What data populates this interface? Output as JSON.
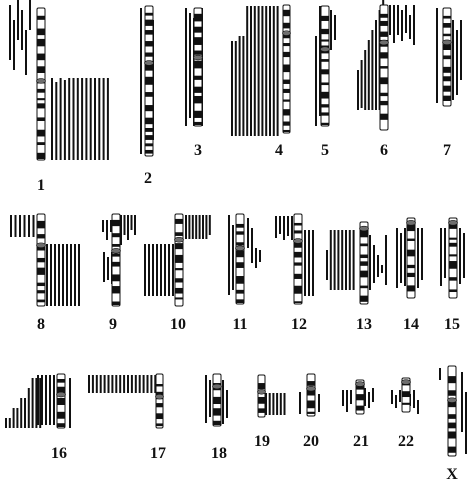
{
  "figure": {
    "labels": [
      "1",
      "2",
      "3",
      "4",
      "5",
      "6",
      "7",
      "8",
      "9",
      "10",
      "11",
      "12",
      "13",
      "14",
      "15",
      "16",
      "17",
      "18",
      "19",
      "20",
      "21",
      "22",
      "X"
    ]
  },
  "colors": {
    "ink": "#111111",
    "paper": "#ffffff",
    "centromere": "#6e6e6e"
  }
}
